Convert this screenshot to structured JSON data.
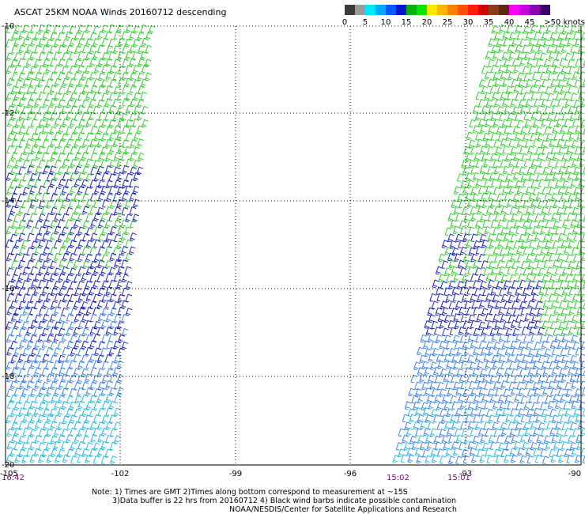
{
  "title": "ASCAT 25KM NOAA Winds 20160712 descending",
  "colorbar": {
    "segments": [
      {
        "color": "#3a3a3a"
      },
      {
        "color": "#9a9a9a"
      },
      {
        "color": "#00e5ff"
      },
      {
        "color": "#00a8ff"
      },
      {
        "color": "#0058ff"
      },
      {
        "color": "#0014c8"
      },
      {
        "color": "#00b400"
      },
      {
        "color": "#00e600"
      },
      {
        "color": "#ffe600"
      },
      {
        "color": "#ffb400"
      },
      {
        "color": "#ff8000"
      },
      {
        "color": "#ff5000"
      },
      {
        "color": "#ff1e00"
      },
      {
        "color": "#d20000"
      },
      {
        "color": "#8c3c1e"
      },
      {
        "color": "#5a2814"
      },
      {
        "color": "#ff00ff"
      },
      {
        "color": "#c800dc"
      },
      {
        "color": "#8c00b4"
      },
      {
        "color": "#3c006e"
      }
    ],
    "labels": [
      "0",
      "5",
      "10",
      "15",
      "20",
      "25",
      "30",
      "35",
      "40",
      "45",
      ">50 knots"
    ]
  },
  "axes": {
    "lat_labels": [
      "-10",
      "-12",
      "-14",
      "-16",
      "-18",
      "-20"
    ],
    "lon_labels": [
      "-105",
      "-102",
      "-99",
      "-96",
      "-93",
      "-90"
    ]
  },
  "swath_times": [
    {
      "label": "16:42"
    },
    {
      "label": "15:02"
    },
    {
      "label": "15:01"
    }
  ],
  "notes": {
    "line1": "Note: 1) Times are GMT 2)Times along bottom correspond to measurement at ~15S",
    "line2": "3)Data buffer is 22 hrs from 20160712 4) Black wind barbs indicate possible contamination",
    "line3": "NOAA/NESDIS/Center for Satellite Applications and Research"
  },
  "legend_colors": {
    "green": "#22c81e",
    "dark_blue": "#0a14b4",
    "blue": "#2c78e6",
    "cyan": "#14b4dc"
  }
}
